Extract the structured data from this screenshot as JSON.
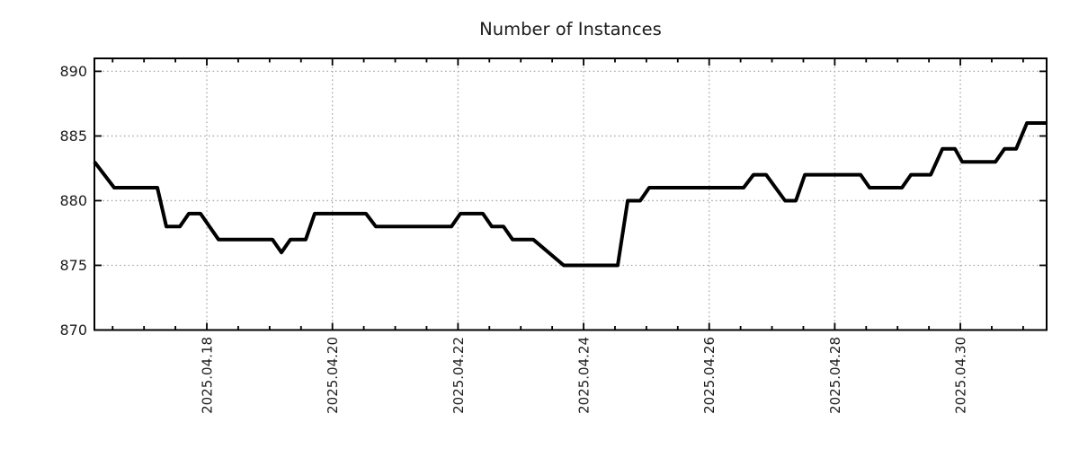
{
  "chart_data": {
    "type": "line",
    "title": "Number of Instances",
    "line_color": "#000000",
    "border_color": "#000000",
    "grid_color": "#a6a6a6",
    "text_color": "#1c1c1c",
    "grid": true,
    "legend": "none",
    "x_axis": {
      "unit": "days relative to 2025-04-18 00:00 (read from tick spacing)",
      "range": [
        -1.79,
        13.374
      ],
      "major_ticks": [
        {
          "d": 0,
          "label": "2025.04.18"
        },
        {
          "d": 2,
          "label": "2025.04.20"
        },
        {
          "d": 4,
          "label": "2025.04.22"
        },
        {
          "d": 6,
          "label": "2025.04.24"
        },
        {
          "d": 8,
          "label": "2025.04.26"
        },
        {
          "d": 10,
          "label": "2025.04.28"
        },
        {
          "d": 12,
          "label": "2025.04.30"
        }
      ],
      "minor_tick_start": -1.5,
      "minor_tick_end": 13.0,
      "minor_tick_step": 0.5
    },
    "y_axis": {
      "range": [
        870,
        891
      ],
      "ticks": [
        870,
        875,
        880,
        885,
        890
      ],
      "tick_labels": [
        "870",
        "875",
        "880",
        "885",
        "890"
      ]
    },
    "points": [
      [
        -1.79,
        883
      ],
      [
        -1.475,
        881
      ],
      [
        -0.788,
        881
      ],
      [
        -0.644,
        878
      ],
      [
        -0.43,
        878
      ],
      [
        -0.286,
        879
      ],
      [
        -0.1,
        879
      ],
      [
        0.186,
        877
      ],
      [
        1.045,
        877
      ],
      [
        1.189,
        876
      ],
      [
        1.332,
        877
      ],
      [
        1.575,
        877
      ],
      [
        1.718,
        879
      ],
      [
        2.535,
        879
      ],
      [
        2.692,
        878
      ],
      [
        3.895,
        878
      ],
      [
        4.038,
        879
      ],
      [
        4.396,
        879
      ],
      [
        4.539,
        878
      ],
      [
        4.725,
        878
      ],
      [
        4.869,
        877
      ],
      [
        5.198,
        877
      ],
      [
        5.685,
        875
      ],
      [
        6.544,
        875
      ],
      [
        6.702,
        880
      ],
      [
        6.902,
        880
      ],
      [
        7.045,
        881
      ],
      [
        8.549,
        881
      ],
      [
        8.706,
        882
      ],
      [
        8.907,
        882
      ],
      [
        9.208,
        880
      ],
      [
        9.38,
        880
      ],
      [
        9.523,
        882
      ],
      [
        10.411,
        882
      ],
      [
        10.554,
        881
      ],
      [
        11.07,
        881
      ],
      [
        11.213,
        882
      ],
      [
        11.528,
        882
      ],
      [
        11.714,
        884
      ],
      [
        11.915,
        884
      ],
      [
        12.029,
        883
      ],
      [
        12.559,
        883
      ],
      [
        12.702,
        884
      ],
      [
        12.888,
        884
      ],
      [
        13.06,
        886
      ],
      [
        13.374,
        886
      ]
    ]
  }
}
